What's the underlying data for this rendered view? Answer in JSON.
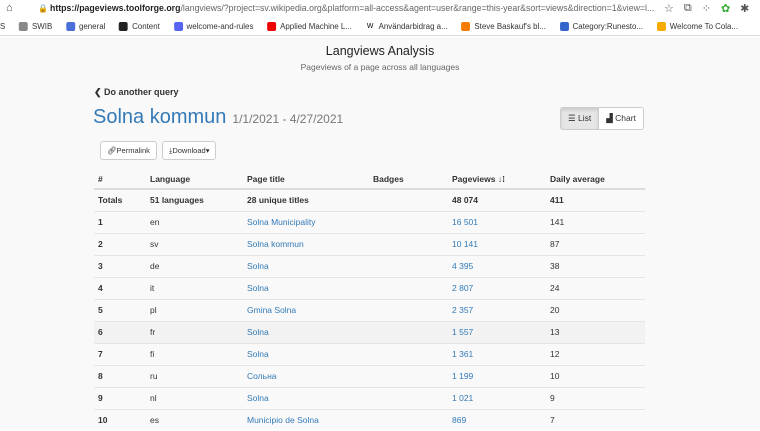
{
  "browser": {
    "url_host": "https://pageviews.toolforge.org",
    "url_rest": "/langviews/?project=sv.wikipedia.org&platform=all-access&agent=user&range=this-year&sort=views&direction=1&view=l...",
    "bookmarks": [
      {
        "label": "S",
        "icon": "none"
      },
      {
        "label": "SWIB",
        "icon": "folder-icon",
        "color": "#888"
      },
      {
        "label": "general",
        "icon": "chat-icon",
        "color": "#4a6fd8"
      },
      {
        "label": "Content",
        "icon": "db-icon",
        "color": "#222"
      },
      {
        "label": "welcome-and-rules",
        "icon": "chat-icon",
        "color": "#5865f2"
      },
      {
        "label": "Applied Machine L...",
        "icon": "youtube-icon",
        "color": "#e00"
      },
      {
        "label": "Användarbidrag a...",
        "icon": "wikipedia-icon",
        "color": "#fff"
      },
      {
        "label": "Steve Baskauf's bl...",
        "icon": "blogger-icon",
        "color": "#f57c00"
      },
      {
        "label": "Category:Runesto...",
        "icon": "commons-icon",
        "color": "#36c"
      },
      {
        "label": "Welcome To Cola...",
        "icon": "colab-icon",
        "color": "#f9ab00"
      }
    ]
  },
  "header": {
    "title": "Langviews Analysis",
    "subtitle": "Pageviews of a page across all languages"
  },
  "back_link": "Do another query",
  "page_name": "Solna kommun",
  "date_range": "1/1/2021 - 4/27/2021",
  "view_toggle": {
    "list": "List",
    "chart": "Chart",
    "active": "list"
  },
  "buttons": {
    "permalink": "Permalink",
    "download": "Download"
  },
  "table": {
    "columns": [
      "#",
      "Language",
      "Page title",
      "Badges",
      "Pageviews",
      "Daily average"
    ],
    "totals": {
      "label": "Totals",
      "languages": "51 languages",
      "titles": "28 unique titles",
      "badges": "",
      "pageviews": "48 074",
      "average": "411"
    },
    "rows": [
      {
        "n": "1",
        "lang": "en",
        "title": "Solna Municipality",
        "badges": "",
        "views": "16 501",
        "avg": "141"
      },
      {
        "n": "2",
        "lang": "sv",
        "title": "Solna kommun",
        "badges": "",
        "views": "10 141",
        "avg": "87"
      },
      {
        "n": "3",
        "lang": "de",
        "title": "Solna",
        "badges": "",
        "views": "4 395",
        "avg": "38"
      },
      {
        "n": "4",
        "lang": "it",
        "title": "Solna",
        "badges": "",
        "views": "2 807",
        "avg": "24"
      },
      {
        "n": "5",
        "lang": "pl",
        "title": "Gmina Solna",
        "badges": "",
        "views": "2 357",
        "avg": "20"
      },
      {
        "n": "6",
        "lang": "fr",
        "title": "Solna",
        "badges": "",
        "views": "1 557",
        "avg": "13"
      },
      {
        "n": "7",
        "lang": "fi",
        "title": "Solna",
        "badges": "",
        "views": "1 361",
        "avg": "12"
      },
      {
        "n": "8",
        "lang": "ru",
        "title": "Сольна",
        "badges": "",
        "views": "1 199",
        "avg": "10"
      },
      {
        "n": "9",
        "lang": "nl",
        "title": "Solna",
        "badges": "",
        "views": "1 021",
        "avg": "9"
      },
      {
        "n": "10",
        "lang": "es",
        "title": "Municipio de Solna",
        "badges": "",
        "views": "869",
        "avg": "7"
      }
    ]
  }
}
